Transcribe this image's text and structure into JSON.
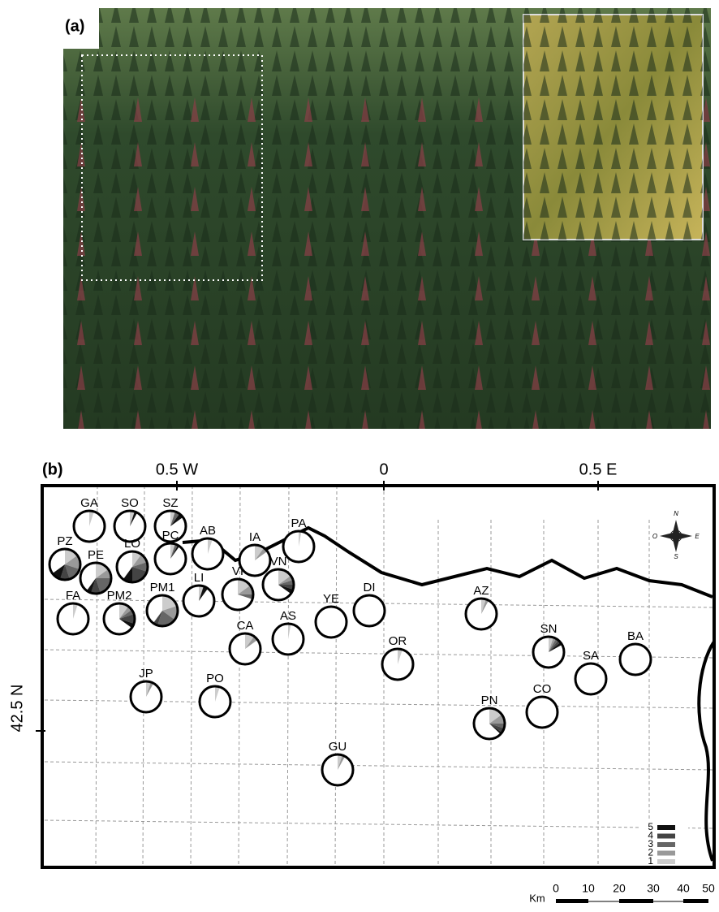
{
  "panel_a": {
    "label": "(a)"
  },
  "panel_b": {
    "label": "(b)",
    "longitude_labels": [
      "0.5 W",
      "0",
      "0.5 E"
    ],
    "latitude_label": "42.5 N",
    "compass": [
      "N",
      "S",
      "E",
      "O"
    ],
    "legend": [
      {
        "label": "5",
        "color": "#111111"
      },
      {
        "label": "4",
        "color": "#444444"
      },
      {
        "label": "3",
        "color": "#666666"
      },
      {
        "label": "2",
        "color": "#999999"
      },
      {
        "label": "1",
        "color": "#cccccc"
      }
    ],
    "sites": [
      {
        "name": "GA",
        "values": [
          5,
          0,
          0,
          0,
          0
        ]
      },
      {
        "name": "SO",
        "values": [
          5,
          0,
          0,
          0,
          3
        ]
      },
      {
        "name": "SZ",
        "values": [
          5,
          0,
          5,
          0,
          5
        ]
      },
      {
        "name": "PZ",
        "values": [
          15,
          15,
          15,
          10,
          10
        ]
      },
      {
        "name": "PE",
        "values": [
          15,
          10,
          20,
          10,
          5
        ]
      },
      {
        "name": "LO",
        "values": [
          10,
          10,
          10,
          20,
          10
        ]
      },
      {
        "name": "PC",
        "values": [
          5,
          0,
          3,
          0,
          2
        ]
      },
      {
        "name": "AB",
        "values": [
          5,
          0,
          0,
          0,
          0
        ]
      },
      {
        "name": "IA",
        "values": [
          10,
          5,
          0,
          0,
          0
        ]
      },
      {
        "name": "PA",
        "values": [
          3,
          0,
          0,
          0,
          0
        ]
      },
      {
        "name": "FA",
        "values": [
          5,
          0,
          0,
          0,
          0
        ]
      },
      {
        "name": "PM2",
        "values": [
          10,
          5,
          5,
          10,
          5
        ]
      },
      {
        "name": "PM1",
        "values": [
          20,
          15,
          20,
          5,
          0
        ]
      },
      {
        "name": "LI",
        "values": [
          5,
          0,
          0,
          0,
          5
        ]
      },
      {
        "name": "VI",
        "values": [
          15,
          10,
          5,
          0,
          0
        ]
      },
      {
        "name": "VN",
        "values": [
          15,
          5,
          5,
          5,
          5
        ]
      },
      {
        "name": "YE",
        "values": [
          0,
          0,
          0,
          0,
          0
        ]
      },
      {
        "name": "DI",
        "values": [
          0,
          0,
          0,
          0,
          0
        ]
      },
      {
        "name": "AS",
        "values": [
          3,
          0,
          0,
          0,
          0
        ]
      },
      {
        "name": "CA",
        "values": [
          10,
          5,
          0,
          0,
          0
        ]
      },
      {
        "name": "OR",
        "values": [
          5,
          0,
          0,
          0,
          0
        ]
      },
      {
        "name": "AZ",
        "values": [
          5,
          3,
          0,
          0,
          0
        ]
      },
      {
        "name": "SN",
        "values": [
          5,
          3,
          3,
          3,
          3
        ]
      },
      {
        "name": "SA",
        "values": [
          0,
          0,
          0,
          0,
          0
        ]
      },
      {
        "name": "BA",
        "values": [
          0,
          0,
          0,
          0,
          0
        ]
      },
      {
        "name": "JP",
        "values": [
          5,
          3,
          0,
          0,
          0
        ]
      },
      {
        "name": "PO",
        "values": [
          5,
          0,
          0,
          0,
          0
        ]
      },
      {
        "name": "PN",
        "values": [
          15,
          10,
          5,
          5,
          2
        ]
      },
      {
        "name": "CO",
        "values": [
          0,
          0,
          0,
          0,
          0
        ]
      },
      {
        "name": "GU",
        "values": [
          5,
          3,
          0,
          0,
          0
        ]
      }
    ],
    "scale": {
      "unit": "Km",
      "ticks": [
        0,
        10,
        20,
        30,
        40,
        50
      ]
    }
  }
}
